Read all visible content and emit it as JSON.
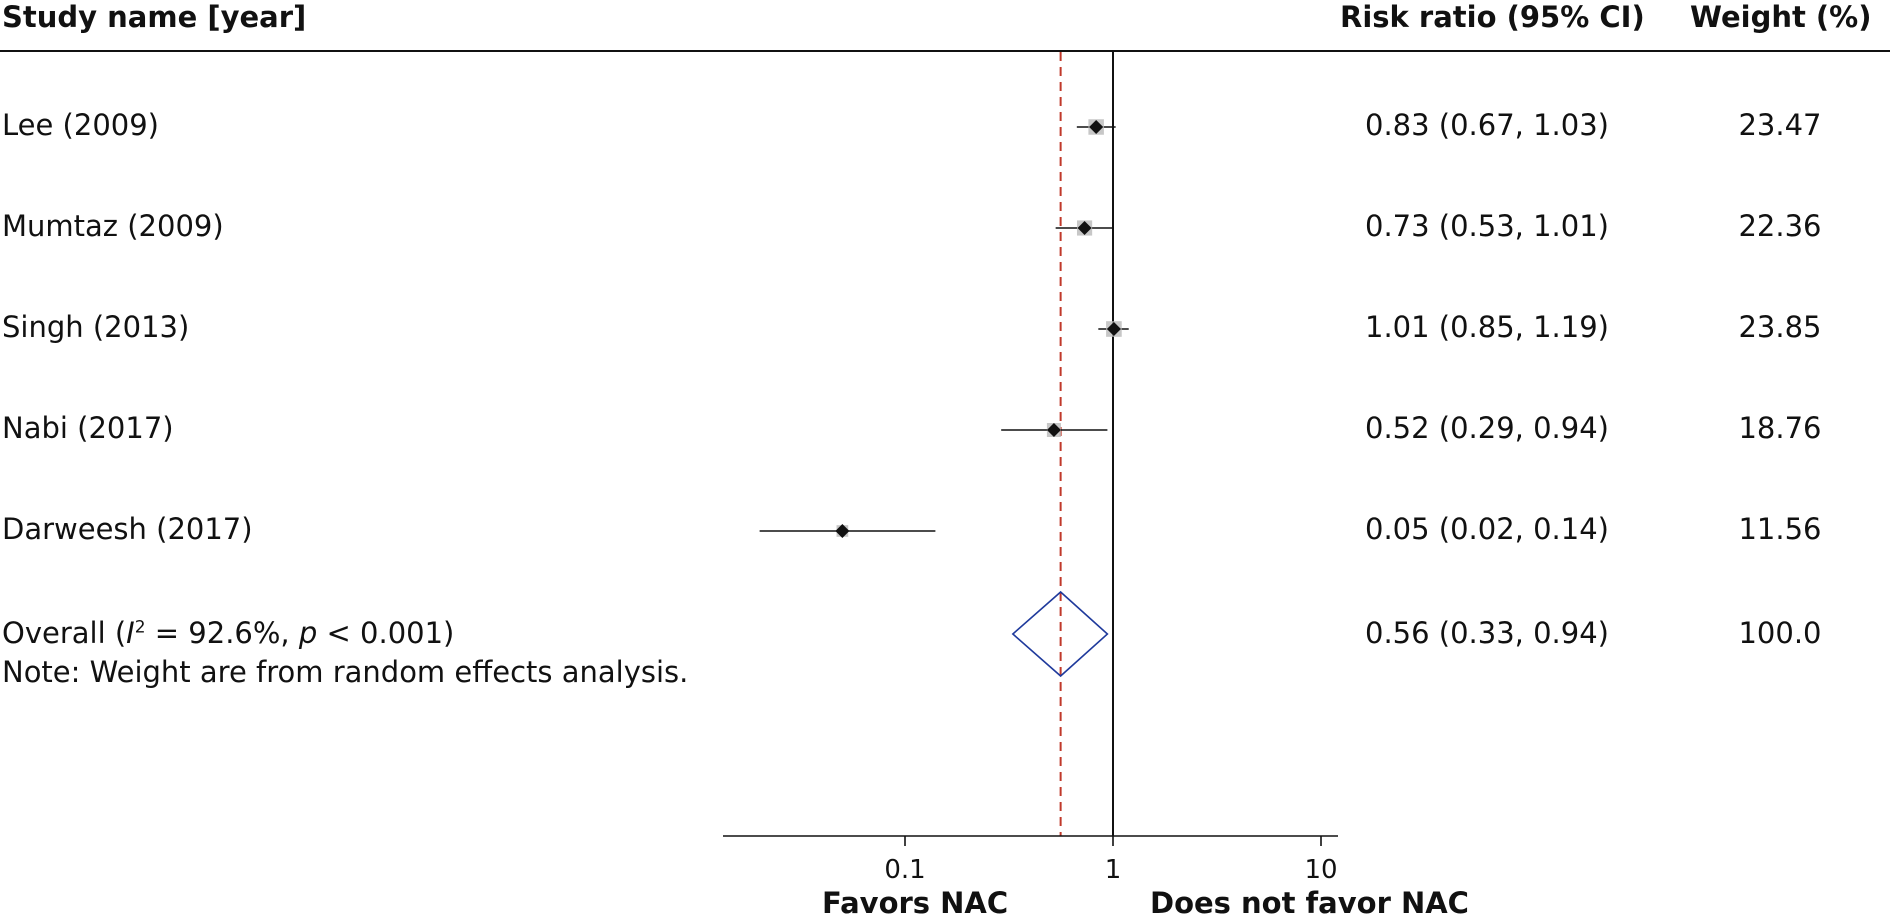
{
  "headers": {
    "study": "Study name [year]",
    "risk_ratio": "Risk ratio (95% CI)",
    "weight": "Weight (%)"
  },
  "rows": [
    {
      "label": "Lee (2009)",
      "rr_text": "0.83 (0.67, 1.03)",
      "weight": "23.47"
    },
    {
      "label": "Mumtaz (2009)",
      "rr_text": "0.73 (0.53, 1.01)",
      "weight": "22.36"
    },
    {
      "label": "Singh (2013)",
      "rr_text": "1.01 (0.85, 1.19)",
      "weight": "23.85"
    },
    {
      "label": "Nabi (2017)",
      "rr_text": "0.52 (0.29, 0.94)",
      "weight": "18.76"
    },
    {
      "label": "Darweesh (2017)",
      "rr_text": "0.05 (0.02, 0.14)",
      "weight": "11.56"
    }
  ],
  "overall": {
    "label_prefix": "Overall (",
    "i_symbol": "I",
    "i_sup": "2",
    "i_value": " = 92.6%, ",
    "p_symbol": "p",
    "p_value": " < 0.001)",
    "rr_text": "0.56 (0.33, 0.94)",
    "weight": "100.0"
  },
  "note": "Note: Weight are from random effects analysis.",
  "favors": {
    "left": "Favors NAC",
    "right": "Does not favor NAC"
  },
  "colors": {
    "diamond": "#1f3a9c",
    "reference_dashed": "#c0392b",
    "marker_shadow": "#bdbdbd"
  },
  "chart_data": {
    "type": "forest",
    "scale": "log",
    "xlim": [
      0.013,
      12
    ],
    "ticks": [
      0.1,
      1,
      10
    ],
    "tick_labels": [
      "0.1",
      "1",
      "10"
    ],
    "null_line": 1,
    "pooled_line": 0.56,
    "studies": [
      {
        "name": "Lee (2009)",
        "rr": 0.83,
        "lo": 0.67,
        "hi": 1.03,
        "weight": 23.47
      },
      {
        "name": "Mumtaz (2009)",
        "rr": 0.73,
        "lo": 0.53,
        "hi": 1.01,
        "weight": 22.36
      },
      {
        "name": "Singh (2013)",
        "rr": 1.01,
        "lo": 0.85,
        "hi": 1.19,
        "weight": 23.85
      },
      {
        "name": "Nabi (2017)",
        "rr": 0.52,
        "lo": 0.29,
        "hi": 0.94,
        "weight": 18.76
      },
      {
        "name": "Darweesh (2017)",
        "rr": 0.05,
        "lo": 0.02,
        "hi": 0.14,
        "weight": 11.56
      }
    ],
    "overall": {
      "rr": 0.56,
      "lo": 0.33,
      "hi": 0.94,
      "weight": 100.0
    },
    "xlabel_left": "Favors NAC",
    "xlabel_right": "Does not favor NAC"
  }
}
